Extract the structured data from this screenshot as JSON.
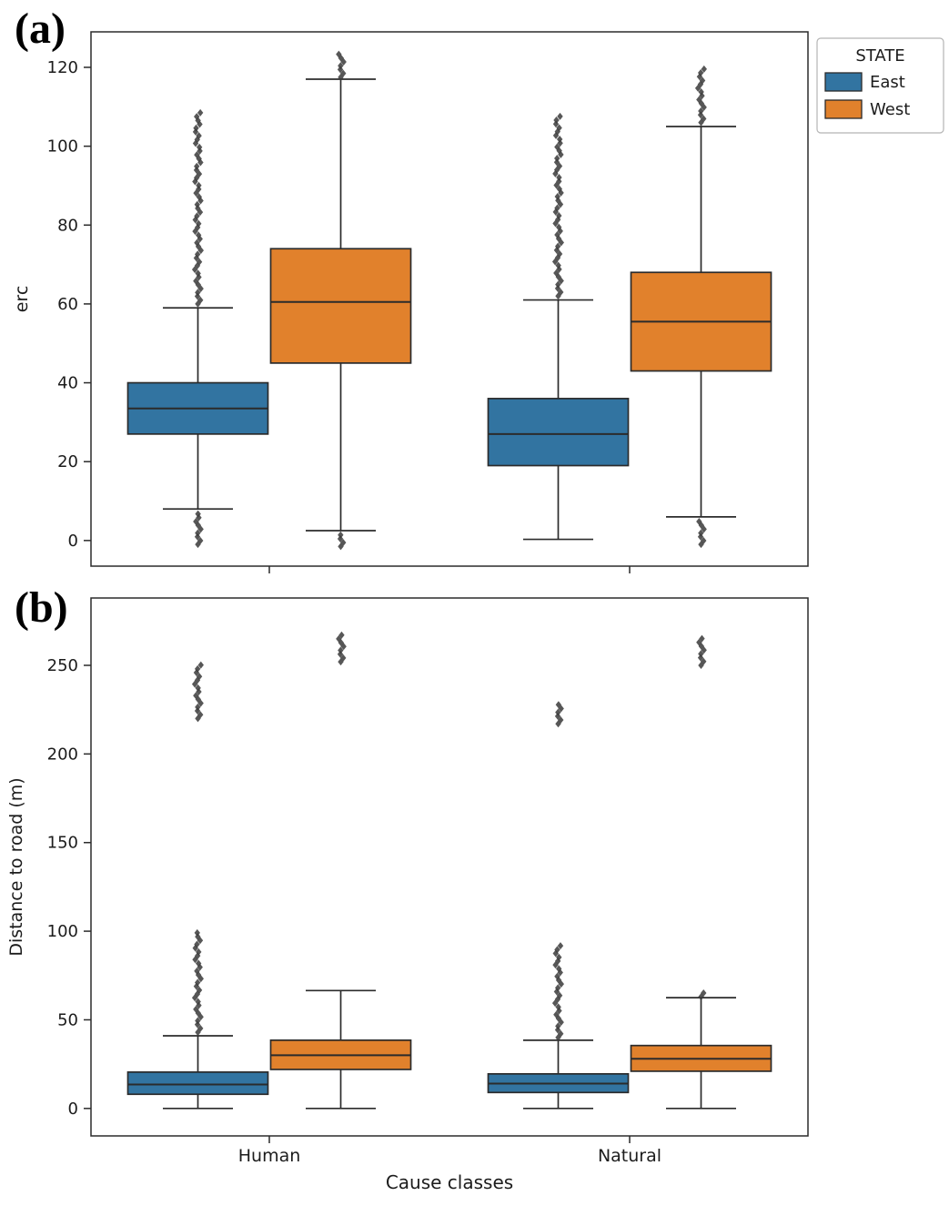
{
  "chart_data": [
    {
      "type": "boxplot",
      "panel_label": "(a)",
      "title": "",
      "xlabel": "",
      "ylabel": "erc",
      "yticks": [
        0,
        20,
        40,
        60,
        80,
        100,
        120
      ],
      "ylim": [
        -6.5,
        129
      ],
      "categories": [
        "Human",
        "Natural"
      ],
      "show_x_labels": false,
      "grid": false,
      "legend": {
        "title": "STATE",
        "position": "upper right outside",
        "entries": [
          {
            "label": "East",
            "color": "#3274a1"
          },
          {
            "label": "West",
            "color": "#e1812c"
          }
        ]
      },
      "series": [
        {
          "name": "East",
          "color": "#3274a1",
          "boxes": [
            {
              "category": "Human",
              "whisker_low": 8,
              "q1": 27,
              "median": 33.5,
              "q3": 40,
              "whisker_high": 59,
              "outlier_clusters": [
                {
                  "from": 60,
                  "to": 109
                },
                {
                  "from": -1,
                  "to": 7
                }
              ]
            },
            {
              "category": "Natural",
              "whisker_low": 0.3,
              "q1": 19,
              "median": 27,
              "q3": 36,
              "whisker_high": 61,
              "outlier_clusters": [
                {
                  "from": 62,
                  "to": 108
                }
              ]
            }
          ]
        },
        {
          "name": "West",
          "color": "#e1812c",
          "boxes": [
            {
              "category": "Human",
              "whisker_low": 2.5,
              "q1": 45,
              "median": 60.5,
              "q3": 74,
              "whisker_high": 117,
              "outlier_clusters": [
                {
                  "from": 117.5,
                  "to": 123.5
                },
                {
                  "from": -1.5,
                  "to": 1.5
                }
              ]
            },
            {
              "category": "Natural",
              "whisker_low": 6,
              "q1": 43,
              "median": 55.5,
              "q3": 68,
              "whisker_high": 105,
              "outlier_clusters": [
                {
                  "from": 106,
                  "to": 120
                },
                {
                  "from": -1,
                  "to": 5.5
                }
              ]
            }
          ]
        }
      ]
    },
    {
      "type": "boxplot",
      "panel_label": "(b)",
      "title": "",
      "xlabel": "Cause classes",
      "ylabel": "Distance to road (m)",
      "yticks": [
        0,
        50,
        100,
        150,
        200,
        250
      ],
      "ylim": [
        -15.5,
        288
      ],
      "categories": [
        "Human",
        "Natural"
      ],
      "show_x_labels": true,
      "grid": false,
      "legend": null,
      "series": [
        {
          "name": "East",
          "color": "#3274a1",
          "boxes": [
            {
              "category": "Human",
              "whisker_low": 0,
              "q1": 8,
              "median": 13.5,
              "q3": 20.5,
              "whisker_high": 41,
              "outlier_clusters": [
                {
                  "from": 43,
                  "to": 101
                },
                {
                  "from": 220,
                  "to": 252
                }
              ]
            },
            {
              "category": "Natural",
              "whisker_low": 0,
              "q1": 9,
              "median": 14,
              "q3": 19.5,
              "whisker_high": 38.5,
              "outlier_clusters": [
                {
                  "from": 40,
                  "to": 93
                },
                {
                  "from": 217,
                  "to": 228
                }
              ]
            }
          ]
        },
        {
          "name": "West",
          "color": "#e1812c",
          "boxes": [
            {
              "category": "Human",
              "whisker_low": 0,
              "q1": 22,
              "median": 30,
              "q3": 38.5,
              "whisker_high": 66.5,
              "outlier_clusters": [
                {
                  "from": 252,
                  "to": 268
                }
              ]
            },
            {
              "category": "Natural",
              "whisker_low": 0,
              "q1": 21,
              "median": 28,
              "q3": 35.5,
              "whisker_high": 62.5,
              "outlier_clusters": [
                {
                  "from": 63,
                  "to": 67
                },
                {
                  "from": 250,
                  "to": 266
                }
              ]
            }
          ]
        }
      ]
    }
  ]
}
